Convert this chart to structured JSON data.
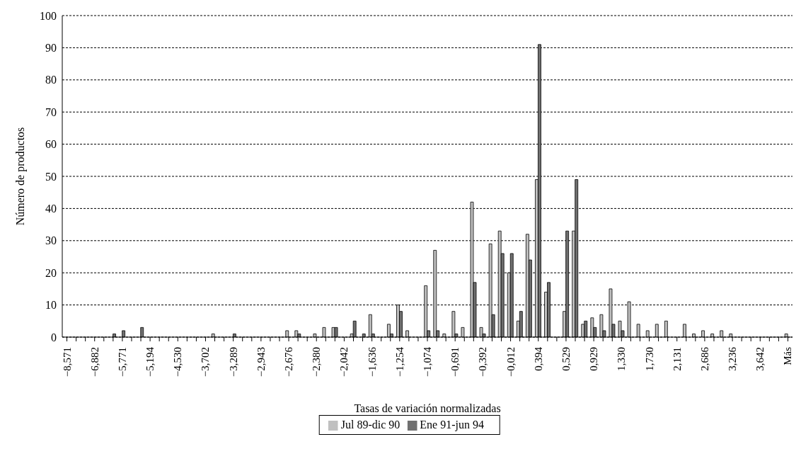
{
  "chart_data": {
    "type": "bar",
    "categories": [
      "−8,571",
      null,
      null,
      "−6,882",
      null,
      null,
      "−5,771",
      null,
      null,
      "−5,194",
      null,
      null,
      "−4,530",
      null,
      null,
      "−3,702",
      null,
      null,
      "−3,289",
      null,
      null,
      "−2,943",
      null,
      null,
      "−2,676",
      null,
      null,
      "−2,380",
      null,
      null,
      "−2,042",
      null,
      null,
      "−1,636",
      null,
      null,
      "−1,254",
      null,
      null,
      "−1,074",
      null,
      null,
      "−0,691",
      null,
      null,
      "−0,392",
      null,
      null,
      "−0,012",
      null,
      null,
      "0,394",
      null,
      null,
      "0,529",
      null,
      null,
      "0,929",
      null,
      null,
      "1,330",
      null,
      null,
      "1,730",
      null,
      null,
      "2,131",
      null,
      null,
      "2,686",
      null,
      null,
      "3,236",
      null,
      null,
      "3,642",
      null,
      null,
      "Más"
    ],
    "series": [
      {
        "name": "Jul 89-dic 90",
        "color": "#c0c0c0",
        "values": [
          0,
          0,
          0,
          0,
          0,
          0,
          0,
          0,
          0,
          0,
          0,
          0,
          0,
          0,
          0,
          0,
          1,
          0,
          0,
          0,
          0,
          0,
          0,
          0,
          2,
          2,
          0,
          1,
          3,
          3,
          0,
          1,
          0,
          7,
          0,
          4,
          10,
          2,
          0,
          16,
          27,
          1,
          8,
          3,
          42,
          3,
          29,
          33,
          20,
          5,
          32,
          49,
          14,
          0,
          8,
          33,
          4,
          6,
          7,
          15,
          5,
          11,
          4,
          2,
          4,
          5,
          0,
          4,
          1,
          2,
          1,
          2,
          1,
          0,
          0,
          0,
          0,
          0,
          1
        ]
      },
      {
        "name": "Ene 91-jun 94",
        "color": "#707070",
        "values": [
          0,
          0,
          0,
          0,
          0,
          1,
          2,
          0,
          3,
          0,
          0,
          0,
          0,
          0,
          0,
          0,
          0,
          0,
          1,
          0,
          0,
          0,
          0,
          0,
          0,
          1,
          0,
          0,
          0,
          3,
          0,
          5,
          1,
          1,
          0,
          1,
          8,
          0,
          0,
          2,
          2,
          0,
          1,
          0,
          17,
          1,
          7,
          26,
          26,
          8,
          24,
          91,
          17,
          0,
          33,
          49,
          5,
          3,
          2,
          4,
          2,
          0,
          0,
          0,
          0,
          0,
          0,
          0,
          0,
          0,
          0,
          0,
          0,
          0,
          0,
          0,
          0,
          0,
          0
        ]
      }
    ],
    "xlabel": "Tasas de variación normalizadas",
    "ylabel": "Número de productos",
    "ylim": [
      0,
      100
    ],
    "yticks": [
      0,
      10,
      20,
      30,
      40,
      50,
      60,
      70,
      80,
      90,
      100
    ],
    "grid": "y",
    "legend": "bottom"
  }
}
